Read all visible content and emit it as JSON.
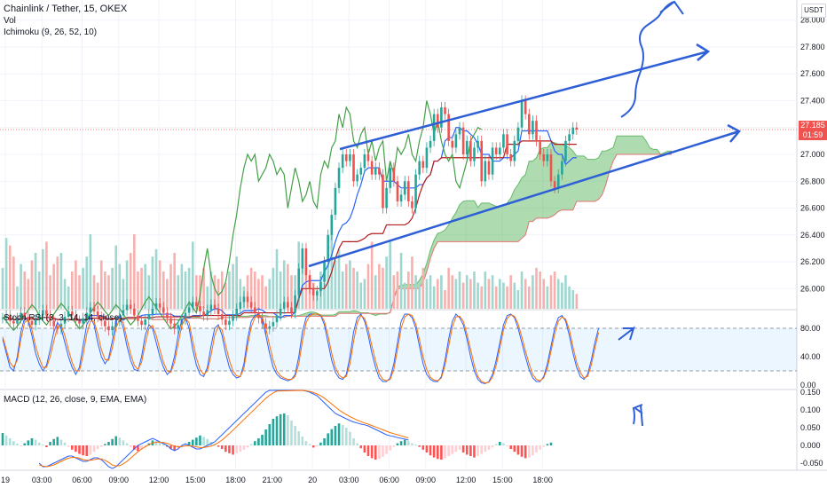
{
  "header": {
    "symbol": "Chainlink / Tether, 15, OKEX",
    "vol_label": "Vol",
    "ichimoku_label": "Ichimoku (9, 26, 52, 10)",
    "currency": "USDT",
    "last_price": "27.185",
    "countdown": "01:59"
  },
  "stoch_panel": {
    "label": "Stoch RSI (3, 3, 14, 14, close)"
  },
  "macd_panel": {
    "label": "MACD (12, 26, close, 9, EMA, EMA)"
  },
  "colors": {
    "up": "#26a69a",
    "down": "#ef5350",
    "vol_up": "#9fd6cf",
    "vol_down": "#f6b1ae",
    "tenkan": "#2962ff",
    "kijun": "#b71c1c",
    "chikou": "#43a047",
    "cloud": "#4caf50",
    "stoch_k": "#2962ff",
    "stoch_d": "#ff6d00",
    "drawn": "#2f5fd6",
    "price_line": "#ef5350"
  },
  "chart_data": [
    {
      "type": "candlestick",
      "title": "Chainlink / Tether, 15, OKEX",
      "ylabel": "USDT",
      "ylim": [
        25.85,
        28.15
      ],
      "y_ticks": [
        "28.000",
        "27.800",
        "27.600",
        "27.400",
        "27.200",
        "27.000",
        "26.800",
        "26.600",
        "26.400",
        "26.200",
        "26.000"
      ],
      "x_ticks": [
        "19",
        "03:00",
        "06:00",
        "09:00",
        "12:00",
        "15:00",
        "18:00",
        "21:00",
        "20",
        "03:00",
        "06:00",
        "09:00",
        "12:00",
        "15:00",
        "18:00"
      ],
      "last_price": 27.185,
      "close": [
        25.78,
        25.8,
        25.76,
        25.74,
        25.78,
        25.82,
        25.79,
        25.76,
        25.73,
        25.77,
        25.8,
        25.84,
        25.8,
        25.76,
        25.72,
        25.7,
        25.74,
        25.79,
        25.83,
        25.8,
        25.76,
        25.74,
        25.78,
        25.82,
        25.86,
        25.83,
        25.79,
        25.76,
        25.72,
        25.69,
        25.72,
        25.76,
        25.8,
        25.84,
        25.88,
        25.85,
        25.8,
        25.76,
        25.73,
        25.77,
        25.81,
        25.85,
        25.89,
        25.86,
        25.82,
        25.78,
        25.74,
        25.7,
        25.73,
        25.77,
        25.82,
        25.86,
        25.9,
        25.87,
        25.83,
        25.8,
        25.84,
        25.88,
        25.85,
        25.81,
        25.77,
        25.73,
        25.76,
        25.8,
        25.85,
        25.9,
        25.94,
        25.9,
        25.86,
        25.82,
        25.78,
        25.74,
        25.7,
        25.72,
        25.75,
        25.8,
        25.85,
        25.9,
        25.86,
        25.82,
        25.95,
        26.15,
        26.3,
        26.1,
        26.0,
        25.95,
        25.98,
        26.05,
        26.2,
        26.4,
        26.55,
        26.75,
        26.9,
        27.0,
        26.95,
        27.0,
        26.8,
        26.85,
        26.9,
        27.0,
        26.95,
        26.85,
        26.9,
        26.85,
        26.6,
        26.75,
        26.9,
        26.8,
        26.65,
        26.7,
        26.8,
        26.65,
        26.6,
        26.85,
        26.95,
        26.9,
        27.05,
        27.1,
        27.3,
        27.2,
        27.35,
        27.3,
        27.1,
        27.05,
        27.15,
        27.2,
        27.0,
        27.1,
        26.95,
        27.05,
        27.1,
        26.8,
        26.95,
        26.85,
        27.05,
        27.0,
        27.05,
        27.15,
        27.0,
        26.95,
        27.1,
        27.2,
        27.4,
        27.3,
        27.15,
        27.25,
        27.1,
        27.0,
        26.95,
        27.0,
        26.8,
        26.75,
        26.85,
        26.95,
        27.1,
        27.15,
        27.2,
        27.185
      ],
      "volume": [
        11,
        19,
        17,
        14,
        6,
        12,
        10,
        8,
        13,
        15,
        10,
        16,
        18,
        9,
        12,
        14,
        15,
        8,
        6,
        10,
        13,
        9,
        11,
        14,
        20,
        9,
        7,
        13,
        10,
        9,
        11,
        17,
        12,
        8,
        13,
        15,
        20,
        10,
        11,
        12,
        9,
        14,
        16,
        13,
        10,
        8,
        12,
        15,
        9,
        12,
        10,
        11,
        18,
        9,
        9,
        11,
        6,
        10,
        9,
        8,
        10,
        7,
        10,
        12,
        14,
        8,
        6,
        9,
        11,
        10,
        8,
        9,
        6,
        8,
        11,
        16,
        10,
        13,
        12,
        9,
        9,
        18,
        14,
        11,
        9,
        7,
        5,
        10,
        7,
        12,
        20,
        13,
        16,
        10,
        12,
        13,
        11,
        10,
        7,
        8,
        12,
        18,
        9,
        12,
        11,
        14,
        18,
        9,
        10,
        15,
        7,
        10,
        14,
        9,
        7,
        11,
        8,
        9,
        6,
        8,
        9,
        5,
        11,
        9,
        8,
        10,
        7,
        9,
        8,
        10,
        7,
        6,
        10,
        8,
        9,
        6,
        8,
        7,
        6,
        9,
        7,
        5,
        10,
        8,
        6,
        9,
        11,
        10,
        8,
        6,
        9,
        10,
        8,
        7,
        9,
        6,
        5,
        4
      ]
    },
    {
      "type": "line",
      "title": "Stoch RSI (3, 3, 14, 14, close)",
      "ylim": [
        -5,
        105
      ],
      "y_ticks": [
        "80.00",
        "40.00",
        "0.00"
      ],
      "band": [
        20,
        80
      ],
      "series": [
        {
          "name": "K",
          "values": [
            65,
            45,
            25,
            20,
            40,
            75,
            95,
            90,
            70,
            45,
            30,
            20,
            28,
            50,
            75,
            88,
            80,
            60,
            40,
            25,
            15,
            25,
            55,
            85,
            95,
            85,
            60,
            40,
            30,
            38,
            62,
            90,
            96,
            80,
            55,
            35,
            22,
            20,
            40,
            70,
            85,
            80,
            60,
            40,
            25,
            15,
            20,
            40,
            70,
            92,
            95,
            80,
            50,
            28,
            15,
            12,
            25,
            55,
            80,
            85,
            70,
            45,
            25,
            15,
            10,
            12,
            30,
            65,
            90,
            98,
            100,
            92,
            70,
            45,
            25,
            15,
            10,
            8,
            6,
            8,
            15,
            40,
            75,
            95,
            100,
            100,
            100,
            98,
            85,
            60,
            35,
            18,
            10,
            8,
            15,
            40,
            75,
            95,
            100,
            90,
            70,
            45,
            25,
            10,
            5,
            5,
            10,
            30,
            60,
            90,
            100,
            100,
            95,
            80,
            55,
            30,
            15,
            8,
            5,
            5,
            12,
            35,
            65,
            90,
            100,
            95,
            85,
            65,
            40,
            20,
            8,
            3,
            2,
            5,
            15,
            35,
            60,
            85,
            98,
            100,
            95,
            80,
            60,
            40,
            22,
            10,
            5,
            5,
            12,
            30,
            55,
            80,
            95,
            98,
            90,
            70,
            45,
            25,
            12,
            8,
            15,
            35,
            60,
            80
          ]
        },
        {
          "name": "D",
          "values": [
            68,
            50,
            32,
            25,
            35,
            65,
            88,
            92,
            78,
            55,
            38,
            25,
            25,
            40,
            62,
            82,
            84,
            70,
            50,
            32,
            20,
            20,
            42,
            72,
            90,
            90,
            72,
            50,
            36,
            35,
            52,
            80,
            93,
            88,
            65,
            44,
            28,
            22,
            32,
            58,
            80,
            84,
            70,
            50,
            32,
            20,
            18,
            32,
            58,
            84,
            94,
            88,
            62,
            38,
            22,
            15,
            20,
            42,
            70,
            83,
            78,
            56,
            35,
            20,
            13,
            12,
            24,
            55,
            82,
            95,
            99,
            95,
            80,
            56,
            35,
            20,
            13,
            10,
            8,
            8,
            12,
            30,
            62,
            88,
            98,
            100,
            100,
            99,
            90,
            70,
            45,
            25,
            14,
            10,
            12,
            30,
            62,
            88,
            98,
            94,
            78,
            55,
            34,
            16,
            8,
            6,
            8,
            22,
            50,
            80,
            96,
            100,
            98,
            86,
            64,
            40,
            22,
            11,
            7,
            6,
            10,
            28,
            55,
            82,
            96,
            97,
            90,
            72,
            50,
            28,
            12,
            5,
            3,
            4,
            11,
            28,
            52,
            78,
            94,
            99,
            97,
            86,
            68,
            48,
            30,
            15,
            8,
            6,
            10,
            24,
            48,
            72,
            90,
            96,
            93,
            78,
            54,
            32,
            18,
            10,
            12,
            28,
            52,
            74
          ]
        }
      ]
    },
    {
      "type": "bar",
      "title": "MACD (12, 26, close, 9, EMA, EMA)",
      "ylim": [
        -0.065,
        0.155
      ],
      "y_ticks": [
        "0.150",
        "0.100",
        "0.050",
        "0.000",
        "-0.050"
      ],
      "histogram": [
        0.035,
        0.028,
        0.02,
        0.012,
        0.005,
        -0.002,
        0.006,
        0.014,
        0.02,
        0.016,
        0.008,
        0.002,
        -0.005,
        0.01,
        0.018,
        0.024,
        0.016,
        0.008,
        -0.004,
        -0.012,
        -0.018,
        -0.024,
        -0.028,
        -0.03,
        -0.026,
        -0.018,
        -0.01,
        -0.004,
        0.004,
        0.01,
        0.018,
        0.026,
        0.022,
        0.014,
        0.006,
        -0.004,
        -0.012,
        -0.016,
        -0.012,
        -0.006,
        0.006,
        0.014,
        0.012,
        0.008,
        0.004,
        -0.004,
        -0.01,
        -0.014,
        -0.01,
        -0.006,
        0.004,
        0.01,
        0.016,
        0.022,
        0.028,
        0.024,
        0.018,
        0.01,
        0.004,
        -0.004,
        -0.01,
        -0.018,
        -0.022,
        -0.026,
        -0.022,
        -0.018,
        -0.012,
        -0.006,
        0.004,
        0.012,
        0.02,
        0.03,
        0.045,
        0.06,
        0.075,
        0.082,
        0.088,
        0.09,
        0.085,
        0.07,
        0.055,
        0.04,
        0.025,
        0.012,
        0.004,
        -0.006,
        -0.002,
        0.008,
        0.02,
        0.034,
        0.046,
        0.055,
        0.062,
        0.058,
        0.05,
        0.038,
        0.02,
        0.006,
        -0.008,
        -0.02,
        -0.03,
        -0.036,
        -0.04,
        -0.038,
        -0.032,
        -0.024,
        -0.014,
        -0.004,
        0.006,
        0.012,
        0.016,
        0.012,
        0.006,
        0.002,
        -0.004,
        -0.012,
        -0.02,
        -0.028,
        -0.034,
        -0.038,
        -0.04,
        -0.036,
        -0.03,
        -0.024,
        -0.018,
        -0.012,
        -0.02,
        -0.026,
        -0.03,
        -0.034,
        -0.03,
        -0.024,
        -0.018,
        -0.012,
        -0.006,
        0.004,
        0.01,
        0.006,
        -0.002,
        -0.01,
        -0.018,
        -0.026,
        -0.032,
        -0.036,
        -0.034,
        -0.028,
        -0.02,
        -0.012,
        -0.004,
        0.004,
        0.008
      ],
      "series": [
        {
          "name": "MACD",
          "values": [
            -0.05,
            -0.06,
            -0.06,
            -0.055,
            -0.05,
            -0.045,
            -0.04,
            -0.035,
            -0.03,
            -0.03,
            -0.035,
            -0.04,
            -0.045,
            -0.045,
            -0.04,
            -0.035,
            -0.035,
            -0.04,
            -0.05,
            -0.06,
            -0.065,
            -0.06,
            -0.05,
            -0.04,
            -0.03,
            -0.02,
            -0.01,
            0.0,
            0.005,
            0.01,
            0.015,
            0.02,
            0.015,
            0.01,
            0.005,
            0.0,
            -0.01,
            -0.015,
            -0.01,
            0.0,
            0.005,
            0.0,
            -0.005,
            -0.01,
            -0.01,
            -0.005,
            0.0,
            0.005,
            0.01,
            0.02,
            0.03,
            0.04,
            0.05,
            0.06,
            0.07,
            0.08,
            0.09,
            0.1,
            0.11,
            0.12,
            0.13,
            0.14,
            0.15,
            0.155,
            0.16,
            0.165,
            0.165,
            0.162,
            0.16,
            0.158,
            0.157,
            0.156,
            0.155,
            0.153,
            0.15,
            0.145,
            0.14,
            0.13,
            0.12,
            0.11,
            0.1,
            0.09,
            0.085,
            0.08,
            0.075,
            0.07,
            0.066,
            0.063,
            0.06,
            0.058,
            0.055,
            0.05,
            0.045,
            0.04,
            0.035,
            0.03,
            0.027,
            0.025,
            0.022,
            0.02,
            0.018,
            0.015
          ]
        },
        {
          "name": "Signal",
          "values": [
            -0.055,
            -0.058,
            -0.06,
            -0.058,
            -0.055,
            -0.05,
            -0.045,
            -0.04,
            -0.036,
            -0.034,
            -0.034,
            -0.036,
            -0.04,
            -0.042,
            -0.042,
            -0.04,
            -0.038,
            -0.038,
            -0.042,
            -0.048,
            -0.055,
            -0.058,
            -0.057,
            -0.052,
            -0.045,
            -0.036,
            -0.027,
            -0.018,
            -0.01,
            -0.004,
            0.002,
            0.007,
            0.009,
            0.009,
            0.008,
            0.006,
            0.002,
            -0.002,
            -0.004,
            -0.003,
            -0.001,
            -0.001,
            -0.002,
            -0.004,
            -0.006,
            -0.006,
            -0.004,
            -0.002,
            0.002,
            0.008,
            0.015,
            0.024,
            0.033,
            0.043,
            0.053,
            0.063,
            0.073,
            0.083,
            0.093,
            0.103,
            0.113,
            0.123,
            0.133,
            0.141,
            0.148,
            0.153,
            0.157,
            0.159,
            0.159,
            0.158,
            0.157,
            0.156,
            0.155,
            0.154,
            0.152,
            0.149,
            0.145,
            0.14,
            0.133,
            0.125,
            0.117,
            0.108,
            0.1,
            0.093,
            0.087,
            0.081,
            0.076,
            0.071,
            0.067,
            0.063,
            0.06,
            0.056,
            0.052,
            0.048,
            0.044,
            0.04,
            0.036,
            0.033,
            0.03,
            0.027,
            0.024,
            0.021
          ]
        }
      ]
    }
  ]
}
